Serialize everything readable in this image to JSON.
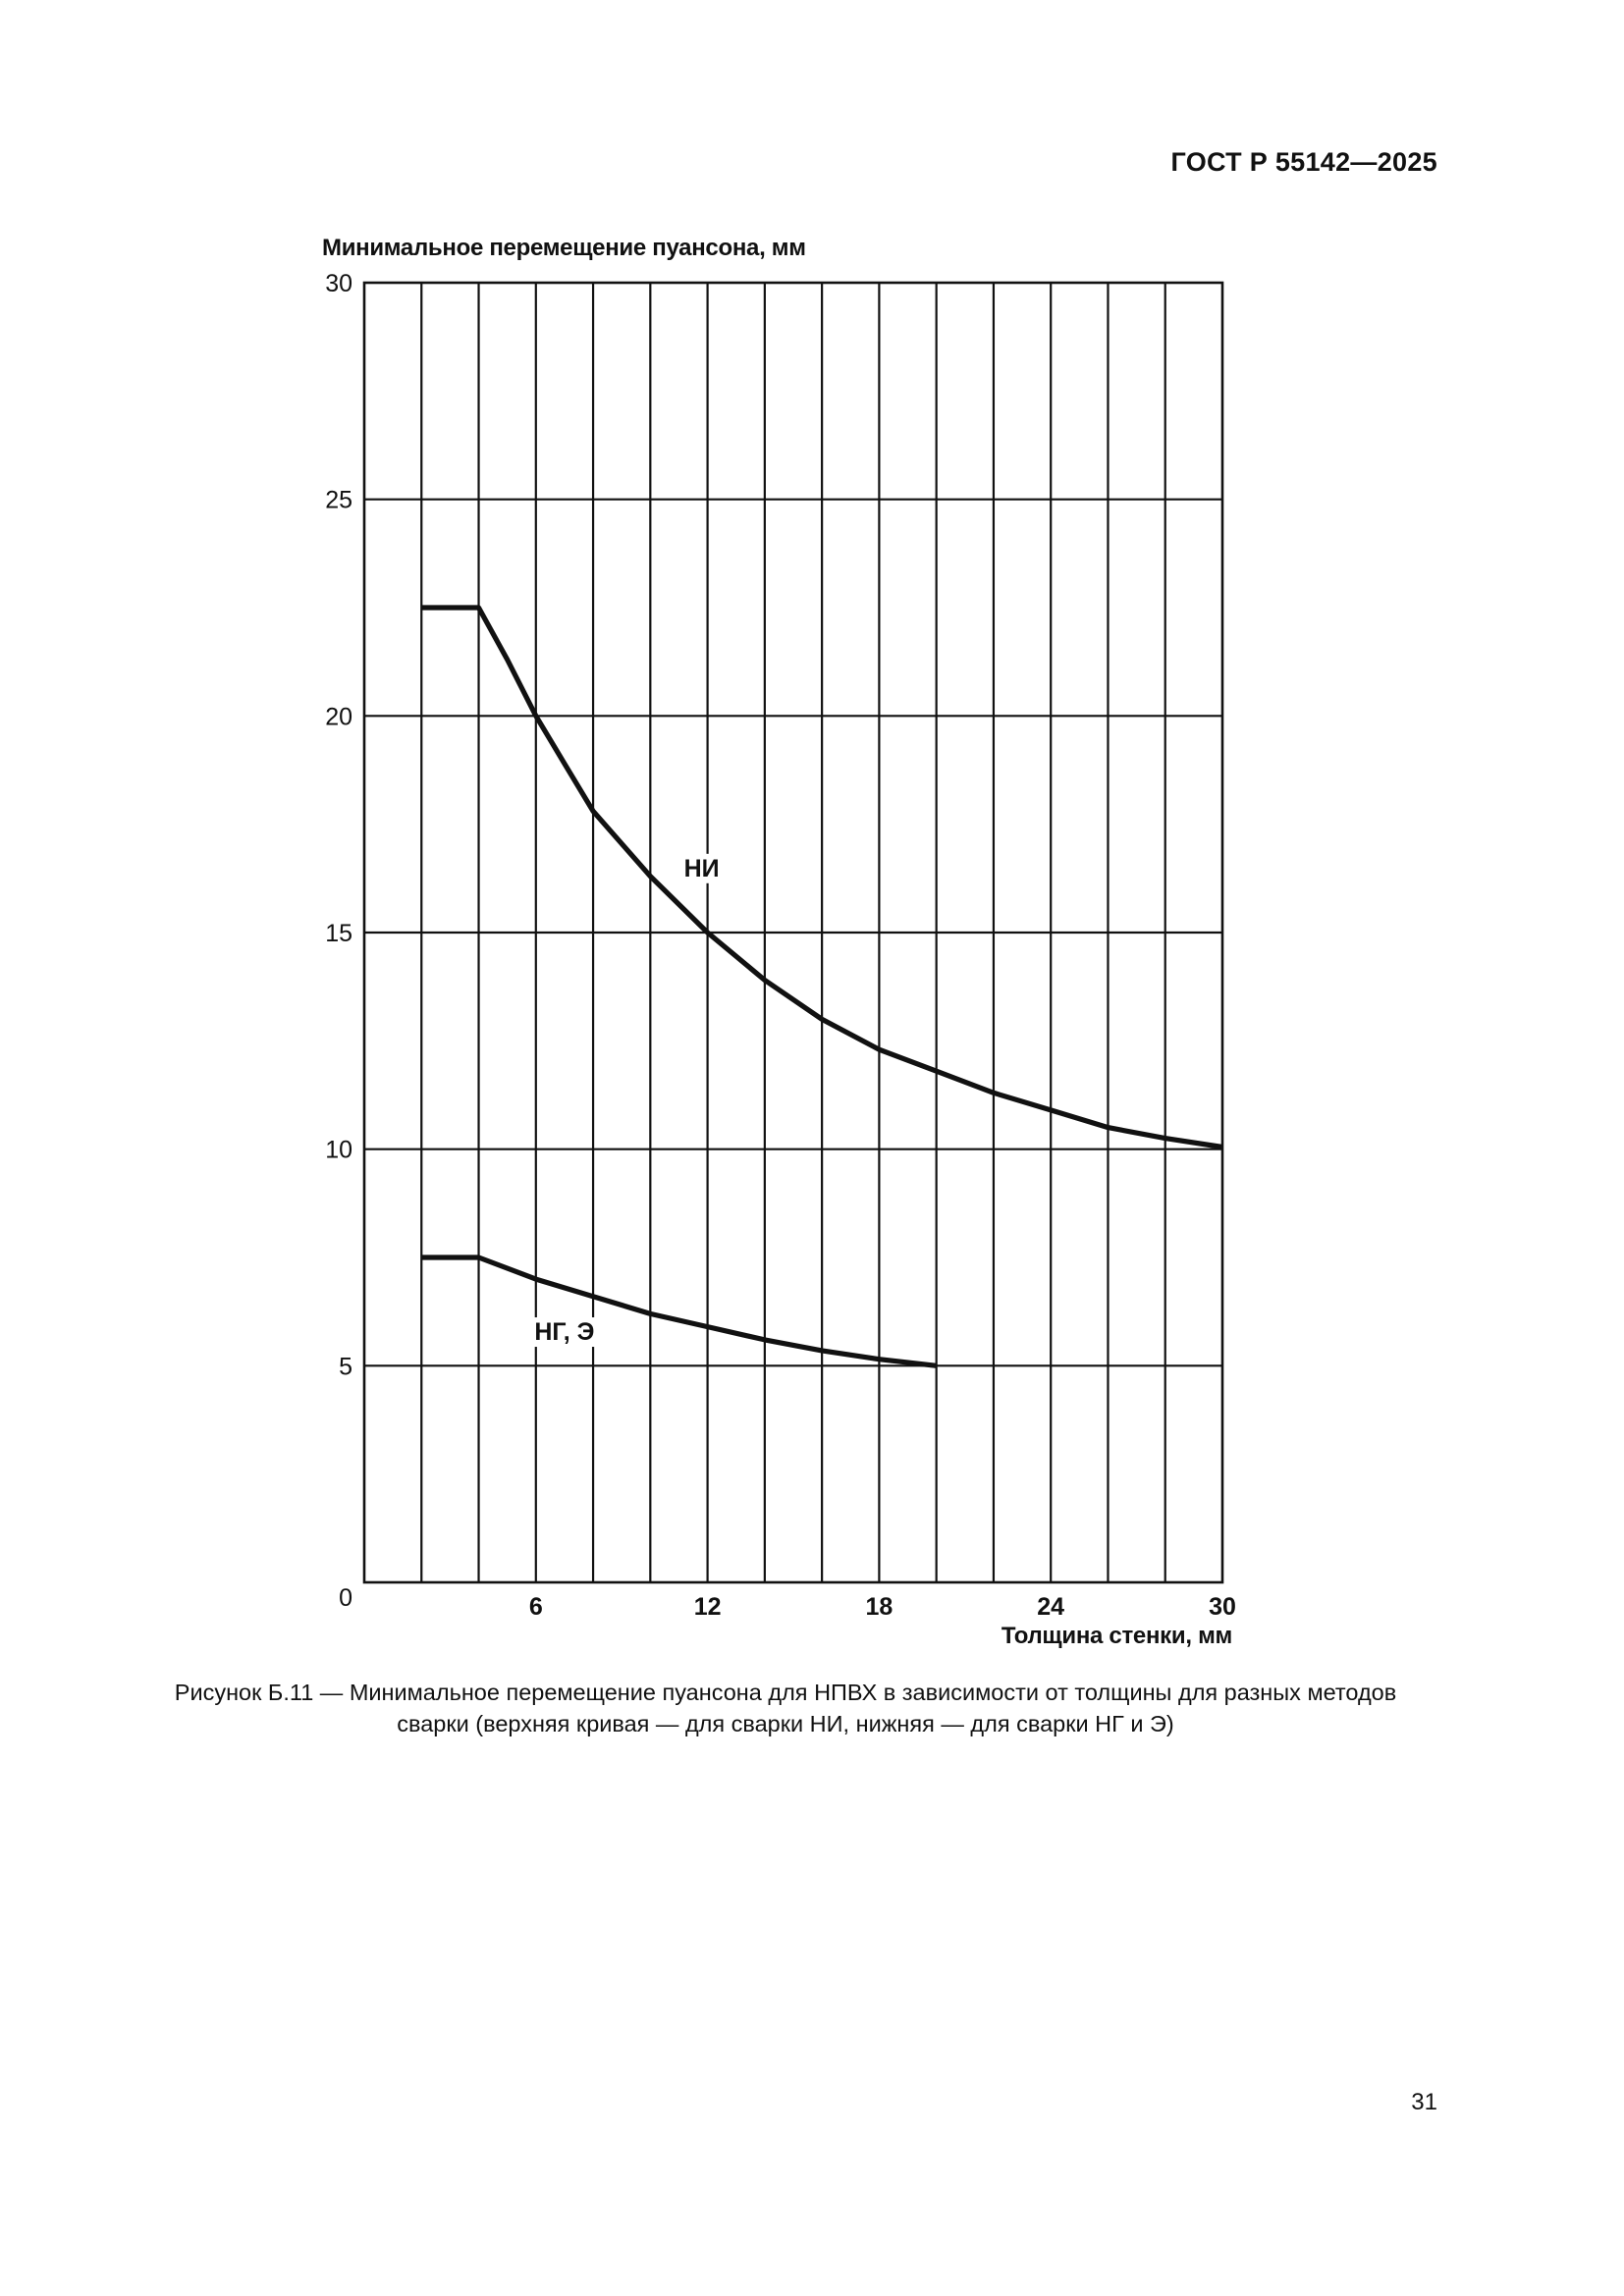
{
  "document": {
    "header": "ГОСТ Р 55142—2025",
    "caption_line1": "Рисунок Б.11 — Минимальное перемещение пуансона для НПВХ в зависимости от толщины для разных методов",
    "caption_line2": "сварки (верхняя кривая — для сварки НИ, нижняя — для сварки НГ и Э)",
    "page_number": "31"
  },
  "chart_data": {
    "type": "line",
    "title": "",
    "ylabel": "Минимальное перемещение пуансона, мм",
    "xlabel": "Толщина стенки, мм",
    "xlim": [
      0,
      30
    ],
    "ylim": [
      0,
      30
    ],
    "x_ticks": [
      6,
      12,
      18,
      24,
      30
    ],
    "x_tick_labels": [
      "6",
      "12",
      "18",
      "24",
      "30"
    ],
    "x_origin_label": "0",
    "y_ticks": [
      5,
      10,
      15,
      20,
      25,
      30
    ],
    "y_tick_labels": [
      "5",
      "10",
      "15",
      "20",
      "25",
      "30"
    ],
    "vertical_grid_step": 2,
    "horizontal_grid_step": 5,
    "grid": true,
    "line_color": "#111111",
    "series": [
      {
        "name": "НИ",
        "x": [
          2,
          4,
          5,
          6,
          7,
          8,
          10,
          12,
          14,
          16,
          18,
          20,
          22,
          24,
          26,
          28,
          30
        ],
        "y": [
          22.5,
          22.5,
          21.3,
          20.0,
          18.9,
          17.8,
          16.3,
          15.0,
          13.9,
          13.0,
          12.3,
          11.8,
          11.3,
          10.9,
          10.5,
          10.25,
          10.05
        ]
      },
      {
        "name": "НГ, Э",
        "x": [
          2,
          4,
          6,
          8,
          10,
          12,
          14,
          16,
          18,
          20
        ],
        "y": [
          7.5,
          7.5,
          7.0,
          6.6,
          6.2,
          5.9,
          5.6,
          5.35,
          5.15,
          5.0
        ]
      }
    ]
  }
}
